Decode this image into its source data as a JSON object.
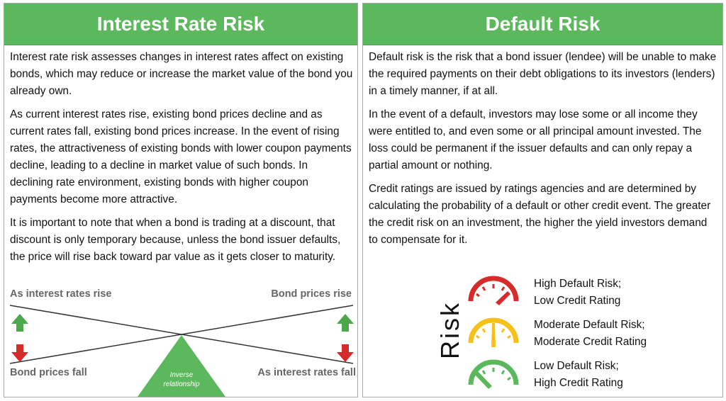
{
  "left": {
    "title": "Interest Rate Risk",
    "p1": "Interest rate risk assesses changes in interest rates affect on existing bonds, which may reduce or increase the market value of the bond you already own.",
    "p2": "As current interest rates rise, existing bond prices decline and as current rates fall, existing bond prices increase. In the event of rising rates, the attractiveness of existing bonds with lower coupon payments decline, leading to a decline in market value of such bonds. In declining rate environment, existing bonds with higher coupon payments become more attractive.",
    "p3": "It is important to note that when a bond is trading at a discount, that discount is only temporary because, unless the bond issuer defaults, the price will rise back toward par value as it gets closer to maturity.",
    "diagram": {
      "top_left": "As interest rates rise",
      "top_right": "Bond prices rise",
      "bottom_left": "Bond prices fall",
      "bottom_right": "As interest rates fall",
      "fulcrum_line1": "Inverse",
      "fulcrum_line2": "relationship"
    }
  },
  "right": {
    "title": "Default Risk",
    "p1": "Default risk is the risk that a bond issuer (lendee) will be unable to make the required payments on their debt obligations to its investors (lenders) in a timely manner, if at all.",
    "p2": "In the event of a default, investors may lose some or all income they were entitled to, and even some or all principal amount invested. The loss could be permanent if the issuer defaults and can only repay a partial amount or nothing.",
    "p3": "Credit ratings are issued by ratings agencies and are determined by calculating the probability of a default or other credit event. The greater the credit risk on an investment, the higher the yield investors demand to compensate for it.",
    "risk_label": "Risk",
    "gauges": [
      {
        "line1": "High Default Risk;",
        "line2": "Low Credit Rating",
        "color": "#d62b2b",
        "icon": "gauge-high-icon"
      },
      {
        "line1": "Moderate Default Risk;",
        "line2": "Moderate Credit Rating",
        "color": "#f5c118",
        "icon": "gauge-moderate-icon"
      },
      {
        "line1": "Low Default Risk;",
        "line2": "High Credit Rating",
        "color": "#5cb85c",
        "icon": "gauge-low-icon"
      }
    ]
  },
  "colors": {
    "header_green": "#5cb85c",
    "arrow_green": "#4aa84a",
    "arrow_red": "#d62b2b"
  }
}
